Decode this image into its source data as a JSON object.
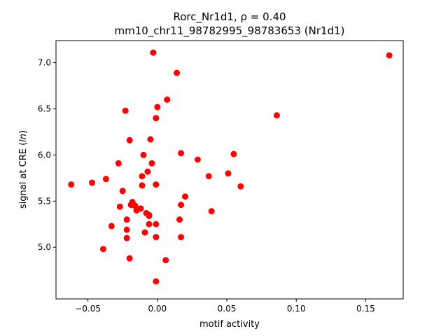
{
  "chart_data": {
    "type": "scatter",
    "title_line1_prefix": "Rorc_Nr1d1, ",
    "title_line1_rho": "ρ = 0.40",
    "title_line2": "mm10_chr11_98782995_98783653 (Nr1d1)",
    "xlabel": "motif activity",
    "ylabel_prefix": "signal at CRE (",
    "ylabel_math": "ln",
    "ylabel_suffix": ")",
    "xlim": [
      -0.073,
      0.177
    ],
    "ylim": [
      4.44,
      7.24
    ],
    "xticks": [
      -0.05,
      0.0,
      0.05,
      0.1,
      0.15
    ],
    "xtick_labels": [
      "−0.05",
      "0.00",
      "0.05",
      "0.10",
      "0.15"
    ],
    "yticks": [
      5.0,
      5.5,
      6.0,
      6.5,
      7.0
    ],
    "ytick_labels": [
      "5.0",
      "5.5",
      "6.0",
      "6.5",
      "7.0"
    ],
    "marker_color": "#ff0000",
    "x": [
      -0.003,
      0.014,
      0.167,
      -0.023,
      0.007,
      0.0,
      -0.001,
      0.086,
      -0.02,
      -0.005,
      0.055,
      0.017,
      -0.01,
      0.029,
      -0.028,
      -0.004,
      -0.007,
      0.051,
      0.037,
      -0.011,
      -0.037,
      -0.047,
      -0.062,
      0.06,
      -0.001,
      -0.011,
      -0.025,
      0.02,
      0.017,
      -0.018,
      -0.019,
      -0.027,
      -0.016,
      -0.012,
      -0.015,
      0.039,
      -0.008,
      -0.006,
      -0.006,
      -0.022,
      0.016,
      -0.033,
      -0.006,
      -0.001,
      -0.022,
      -0.009,
      -0.001,
      0.017,
      -0.022,
      -0.039,
      -0.02,
      0.006,
      -0.001
    ],
    "y": [
      7.11,
      6.89,
      7.08,
      6.48,
      6.6,
      6.52,
      6.4,
      6.43,
      6.16,
      6.17,
      6.01,
      6.02,
      6.0,
      5.95,
      5.91,
      5.91,
      5.82,
      5.8,
      5.77,
      5.77,
      5.74,
      5.7,
      5.68,
      5.66,
      5.68,
      5.67,
      5.61,
      5.55,
      5.46,
      5.49,
      5.46,
      5.44,
      5.45,
      5.42,
      5.4,
      5.39,
      5.37,
      5.35,
      5.34,
      5.3,
      5.3,
      5.23,
      5.25,
      5.25,
      5.19,
      5.16,
      5.11,
      5.11,
      5.1,
      4.98,
      4.88,
      4.86,
      4.63
    ]
  }
}
